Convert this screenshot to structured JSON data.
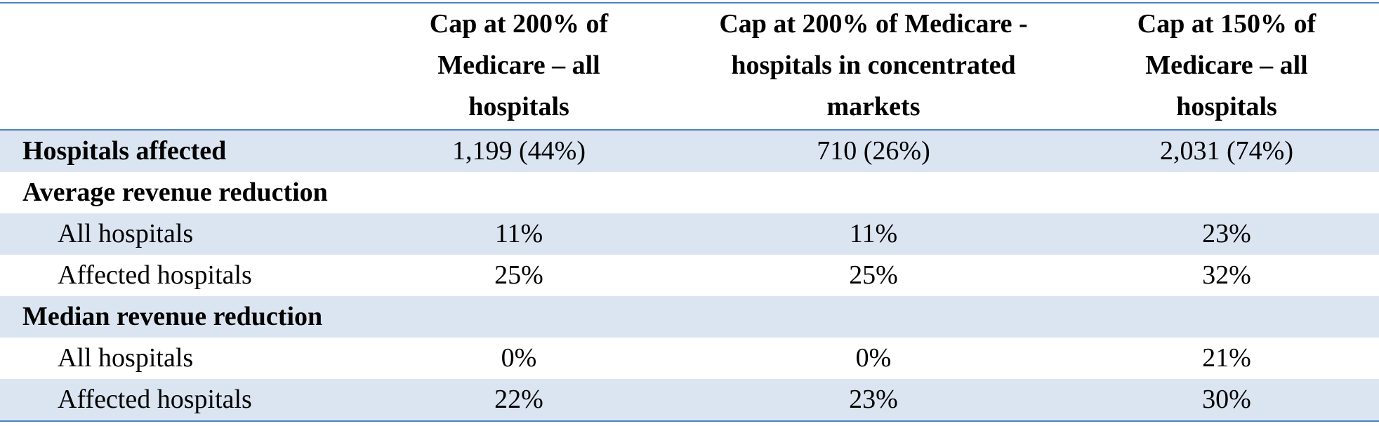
{
  "table": {
    "columns": [
      "Cap at 200% of Medicare – all hospitals",
      "Cap at 200% of Medicare - hospitals in concentrated markets",
      "Cap at 150% of Medicare – all hospitals"
    ],
    "rows": [
      {
        "label": "Hospitals affected",
        "cells": [
          "1,199 (44%)",
          "710 (26%)",
          "2,031 (74%)"
        ]
      },
      {
        "label": "Average revenue reduction",
        "subrows": [
          {
            "label": "All hospitals",
            "cells": [
              "11%",
              "11%",
              "23%"
            ]
          },
          {
            "label": "Affected hospitals",
            "cells": [
              "25%",
              "25%",
              "32%"
            ]
          }
        ]
      },
      {
        "label": "Median revenue reduction",
        "subrows": [
          {
            "label": "All hospitals",
            "cells": [
              "0%",
              "0%",
              "21%"
            ]
          },
          {
            "label": "Affected hospitals",
            "cells": [
              "22%",
              "23%",
              "30%"
            ]
          }
        ]
      }
    ]
  }
}
